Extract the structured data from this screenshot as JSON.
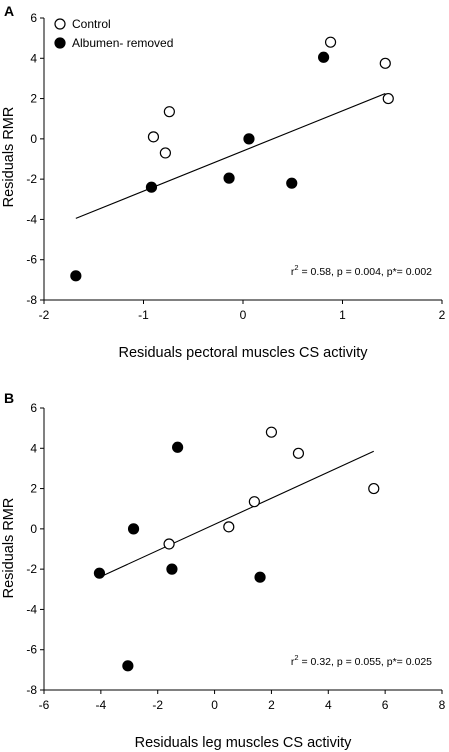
{
  "legend": [
    {
      "label": "Control",
      "fill": "#ffffff",
      "stroke": "#000000"
    },
    {
      "label": "Albumen- removed",
      "fill": "#000000",
      "stroke": "#000000"
    }
  ],
  "chart_data": [
    {
      "panel": "A",
      "type": "scatter",
      "xlabel": "Residuals pectoral muscles CS activity",
      "ylabel": "Residuals RMR",
      "xlim": [
        -2,
        2
      ],
      "ylim": [
        -8,
        6
      ],
      "xticks": [
        -2,
        -1,
        0,
        1,
        2
      ],
      "yticks": [
        -8,
        -6,
        -4,
        -2,
        0,
        2,
        4,
        6
      ],
      "annotation": {
        "r_label": "r",
        "r_exp": "2",
        "rest": " = 0.58, p = 0.004, p*= 0.002"
      },
      "series": [
        {
          "name": "Control",
          "fill": "#ffffff",
          "x": [
            -0.9,
            -0.78,
            -0.74,
            0.88,
            1.43,
            1.46
          ],
          "y": [
            0.1,
            -0.7,
            1.35,
            4.8,
            3.75,
            2.0
          ]
        },
        {
          "name": "Albumen- removed",
          "fill": "#000000",
          "x": [
            -1.68,
            -0.92,
            -0.14,
            0.06,
            0.49,
            0.81
          ],
          "y": [
            -6.8,
            -2.4,
            -1.95,
            0.0,
            -2.2,
            4.05
          ]
        }
      ],
      "regression": {
        "x": [
          -1.68,
          1.43
        ],
        "y": [
          -3.95,
          2.25
        ]
      }
    },
    {
      "panel": "B",
      "type": "scatter",
      "xlabel": "Residuals leg muscles CS activity",
      "ylabel": "Residuals RMR",
      "xlim": [
        -6,
        8
      ],
      "ylim": [
        -8,
        6
      ],
      "xticks": [
        -6,
        -4,
        -2,
        0,
        2,
        4,
        6,
        8
      ],
      "yticks": [
        -8,
        -6,
        -4,
        -2,
        0,
        2,
        4,
        6
      ],
      "annotation": {
        "r_label": "r",
        "r_exp": "2",
        "rest": " = 0.32, p = 0.055, p*= 0.025"
      },
      "series": [
        {
          "name": "Control",
          "fill": "#ffffff",
          "x": [
            -1.6,
            0.5,
            1.4,
            2.0,
            2.95,
            5.6
          ],
          "y": [
            -0.75,
            0.1,
            1.35,
            4.8,
            3.75,
            2.0
          ]
        },
        {
          "name": "Albumen- removed",
          "fill": "#000000",
          "x": [
            -4.05,
            -3.05,
            -2.85,
            -1.5,
            -1.3,
            1.6
          ],
          "y": [
            -2.2,
            -6.8,
            0.0,
            -2.0,
            4.05,
            -2.4
          ]
        }
      ],
      "regression": {
        "x": [
          -4.05,
          5.6
        ],
        "y": [
          -2.4,
          3.85
        ]
      }
    }
  ]
}
